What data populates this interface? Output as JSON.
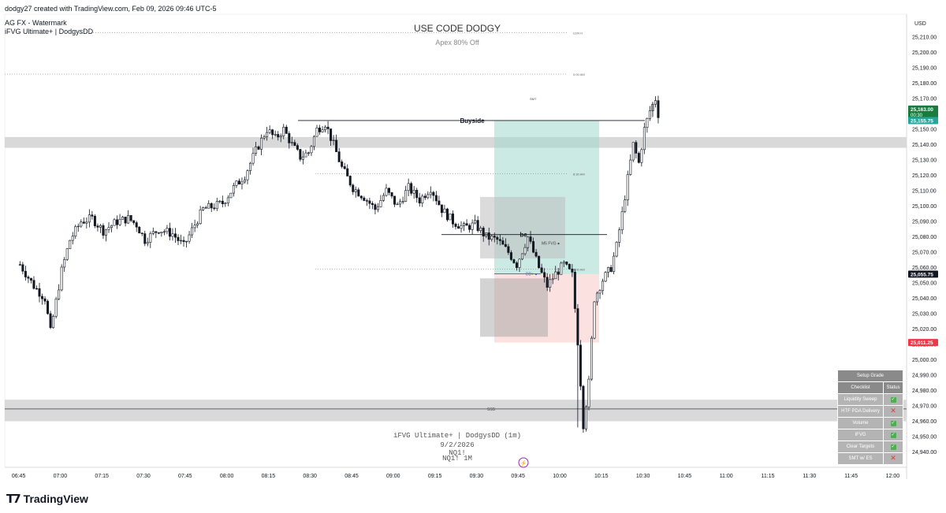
{
  "header": {
    "created_by": "dodgy27 created with TradingView.com, Feb 09, 2026 09:46 UTC-5",
    "watermark": "AG FX - Watermark",
    "indicator": "iFVG Ultimate+ | DodgysDD"
  },
  "overlay": {
    "promo_title": "USE CODE DODGY",
    "promo_subtitle": "Apex 80% Off",
    "bottom_line1": "iFVG Ultimate+ | DodgysDD (1m)",
    "bottom_line2": "9/2/2026",
    "bottom_line3": "NQ1!",
    "bottom_line4": "NQ1! 1M"
  },
  "currency": "USD",
  "footer": {
    "brand": "TradingView"
  },
  "colors": {
    "up": "#131722",
    "down": "#131722",
    "zone_gray": "#cfcfcf",
    "tp_zone": "#9fd8cc",
    "sl_zone": "#fbdada",
    "last_price_bg": "#131722",
    "live_price_bg": "#1b7a3e",
    "target_bg": "#26a69a",
    "stop_bg": "#f23645"
  },
  "chart_data": {
    "type": "candlestick",
    "symbol": "NQ1!",
    "interval": "1m",
    "ylim": [
      24930,
      25225
    ],
    "y_ticks": [
      25210,
      25200,
      25190,
      25180,
      25170,
      25160,
      25150,
      25140,
      25130,
      25120,
      25110,
      25100,
      25090,
      25080,
      25070,
      25060,
      25050,
      25040,
      25030,
      25020,
      25010,
      25000,
      24990,
      24980,
      24970,
      24960,
      24950,
      24940
    ],
    "y_tick_labels": [
      "25,210.00",
      "25,200.00",
      "25,190.00",
      "25,180.00",
      "25,170.00",
      "25,160.00",
      "25,150.00",
      "25,140.00",
      "25,130.00",
      "25,120.00",
      "25,110.00",
      "25,100.00",
      "25,090.00",
      "25,080.00",
      "25,070.00",
      "25,060.00",
      "25,050.00",
      "25,040.00",
      "25,030.00",
      "25,020.00",
      "25,010.00",
      "25,000.00",
      "24,990.00",
      "24,980.00",
      "24,970.00",
      "24,960.00",
      "24,950.00",
      "24,940.00"
    ],
    "x_ticks": [
      "06:45",
      "07:00",
      "07:15",
      "07:30",
      "07:45",
      "08:00",
      "08:15",
      "08:30",
      "08:45",
      "09:00",
      "09:15",
      "09:30",
      "09:45",
      "10:00",
      "10:15",
      "10:30",
      "10:45",
      "11:00",
      "11:15",
      "11:30",
      "11:45",
      "12:00"
    ],
    "x_start_minutes": 400,
    "x_end_minutes": 725,
    "candle_path": [
      [
        405,
        25062
      ],
      [
        410,
        25048
      ],
      [
        414,
        25040
      ],
      [
        416,
        25018
      ],
      [
        420,
        25058
      ],
      [
        423,
        25078
      ],
      [
        427,
        25090
      ],
      [
        431,
        25092
      ],
      [
        435,
        25084
      ],
      [
        440,
        25090
      ],
      [
        444,
        25092
      ],
      [
        447,
        25088
      ],
      [
        450,
        25078
      ],
      [
        455,
        25085
      ],
      [
        460,
        25082
      ],
      [
        464,
        25074
      ],
      [
        468,
        25088
      ],
      [
        471,
        25098
      ],
      [
        475,
        25100
      ],
      [
        478,
        25102
      ],
      [
        482,
        25112
      ],
      [
        486,
        25120
      ],
      [
        490,
        25136
      ],
      [
        494,
        25150
      ],
      [
        497,
        25144
      ],
      [
        500,
        25150
      ],
      [
        503,
        25140
      ],
      [
        506,
        25132
      ],
      [
        509,
        25135
      ],
      [
        512,
        25150
      ],
      [
        515,
        25154
      ],
      [
        518,
        25140
      ],
      [
        521,
        25125
      ],
      [
        525,
        25112
      ],
      [
        529,
        25106
      ],
      [
        533,
        25098
      ],
      [
        537,
        25110
      ],
      [
        541,
        25100
      ],
      [
        545,
        25112
      ],
      [
        549,
        25104
      ],
      [
        553,
        25112
      ],
      [
        557,
        25098
      ],
      [
        561,
        25090
      ],
      [
        565,
        25086
      ],
      [
        569,
        25088
      ],
      [
        573,
        25080
      ],
      [
        577,
        25078
      ],
      [
        581,
        25070
      ],
      [
        584,
        25062
      ],
      [
        588,
        25080
      ],
      [
        590,
        25070
      ],
      [
        592,
        25060
      ],
      [
        595,
        25048
      ],
      [
        598,
        25056
      ],
      [
        601,
        25062
      ],
      [
        604,
        25055
      ],
      [
        606,
        25012
      ],
      [
        608,
        24958
      ],
      [
        610,
        24985
      ],
      [
        612,
        25040
      ],
      [
        615,
        25052
      ],
      [
        618,
        25060
      ],
      [
        620,
        25074
      ],
      [
        622,
        25095
      ],
      [
        624,
        25118
      ],
      [
        626,
        25140
      ],
      [
        628,
        25128
      ],
      [
        630,
        25150
      ],
      [
        632,
        25162
      ],
      [
        634,
        25170
      ],
      [
        636,
        25150
      ]
    ],
    "annotations": {
      "buyside": {
        "label": "Buyside",
        "price": 25155.75
      },
      "be": {
        "label": "be",
        "price": 25081.5
      },
      "m5_fvg": {
        "label": "M5 FVG"
      },
      "ddp": {
        "label": "DD+"
      },
      "ssl": {
        "label": "SSS"
      },
      "smt": {
        "label": "SMT"
      },
      "session_labels": [
        {
          "label": "LDN H",
          "price": 25213
        },
        {
          "label": "0:00 AM",
          "price": 25186
        },
        {
          "label": "8:30 AM",
          "price": 25121
        },
        {
          "label": "9:30 AM",
          "price": 25059
        }
      ],
      "price_tags": [
        {
          "label": "25,163.00",
          "sub": "00:30",
          "price": 25163,
          "kind": "live"
        },
        {
          "label": "25,155.75",
          "price": 25155.75,
          "kind": "target"
        },
        {
          "label": "25,055.75",
          "price": 25055.75,
          "kind": "last"
        },
        {
          "label": "25,011.25",
          "price": 25011.25,
          "kind": "stop"
        }
      ],
      "position": {
        "entry": 25055.75,
        "target": 25155.75,
        "stop": 25011.25
      }
    }
  },
  "grade_table": {
    "title": "Setup Grade",
    "col_checklist": "Checklist",
    "col_status": "Status",
    "rows": [
      {
        "label": "Liquidity Sweep",
        "ok": true
      },
      {
        "label": "HTF PDA Delivery",
        "ok": false
      },
      {
        "label": "Volume",
        "ok": true
      },
      {
        "label": "IFVG",
        "ok": true
      },
      {
        "label": "Clear Targets",
        "ok": true
      },
      {
        "label": "SMT w/ ES",
        "ok": false
      }
    ]
  }
}
